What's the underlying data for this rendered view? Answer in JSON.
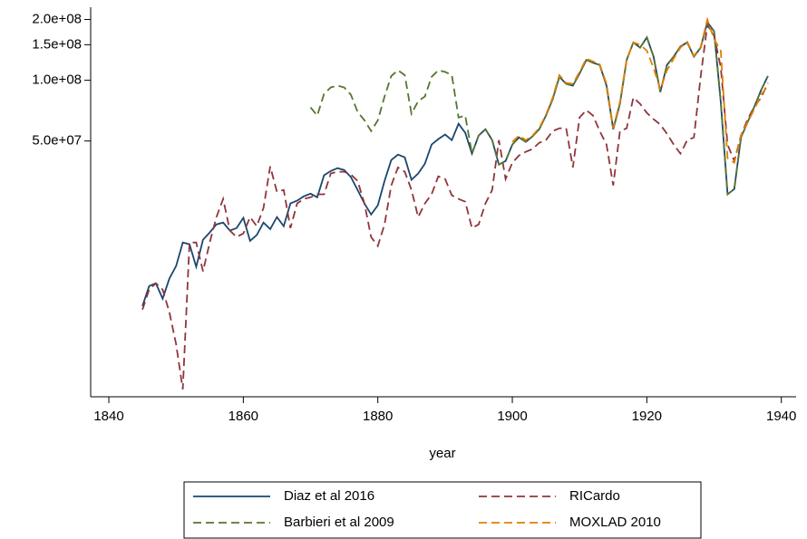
{
  "chart_data": {
    "type": "line",
    "x_label": "year",
    "x": [
      1845,
      1846,
      1847,
      1848,
      1849,
      1850,
      1851,
      1852,
      1853,
      1854,
      1855,
      1856,
      1857,
      1858,
      1859,
      1860,
      1861,
      1862,
      1863,
      1864,
      1865,
      1866,
      1867,
      1868,
      1869,
      1870,
      1871,
      1872,
      1873,
      1874,
      1875,
      1876,
      1877,
      1878,
      1879,
      1880,
      1881,
      1882,
      1883,
      1884,
      1885,
      1886,
      1887,
      1888,
      1889,
      1890,
      1891,
      1892,
      1893,
      1894,
      1895,
      1896,
      1897,
      1898,
      1899,
      1900,
      1901,
      1902,
      1903,
      1904,
      1905,
      1906,
      1907,
      1908,
      1909,
      1910,
      1911,
      1912,
      1913,
      1914,
      1915,
      1916,
      1917,
      1918,
      1919,
      1920,
      1921,
      1922,
      1923,
      1924,
      1925,
      1926,
      1927,
      1928,
      1929,
      1930,
      1931,
      1932,
      1933,
      1934,
      1935,
      1936,
      1937,
      1938
    ],
    "series": [
      {
        "name": "Diaz et al 2016",
        "color": "#1a476f",
        "dash": false,
        "values": [
          7610000,
          9550000,
          9860000,
          8270000,
          10400000,
          12000000,
          15700000,
          15400000,
          11900000,
          16200000,
          17600000,
          19300000,
          19700000,
          18000000,
          18500000,
          20800000,
          16000000,
          17100000,
          19700000,
          18300000,
          21000000,
          18900000,
          24500000,
          25300000,
          26600000,
          27400000,
          26300000,
          33800000,
          35500000,
          36700000,
          35900000,
          33100000,
          28600000,
          24500000,
          21600000,
          24000000,
          31700000,
          40200000,
          42800000,
          41500000,
          32100000,
          34500000,
          38600000,
          48000000,
          51100000,
          53800000,
          50500000,
          60900000,
          54900000,
          43300000,
          53200000,
          57200000,
          50500000,
          38200000,
          39800000,
          48000000,
          52100000,
          49500000,
          52700000,
          57200000,
          66800000,
          80500000,
          104000000,
          95900000,
          94000000,
          108000000,
          126000000,
          122000000,
          119000000,
          94000000,
          57200000,
          76400000,
          126000000,
          154000000,
          145000000,
          163000000,
          131000000,
          87400000,
          119000000,
          131000000,
          147000000,
          154000000,
          131000000,
          145000000,
          194000000,
          175000000,
          78000000,
          27200000,
          28900000,
          52100000,
          62100000,
          74100000,
          89300000,
          105000000
        ]
      },
      {
        "name": "RICardo",
        "color": "#90353b",
        "dash": true,
        "values": [
          7300000,
          9170000,
          9860000,
          9170000,
          7080000,
          4930000,
          2940000,
          15700000,
          15700000,
          11300000,
          15700000,
          21000000,
          25800000,
          18000000,
          16700000,
          17400000,
          21000000,
          18900000,
          23300000,
          37400000,
          28000000,
          28600000,
          18500000,
          24500000,
          25800000,
          26300000,
          27200000,
          27200000,
          34500000,
          35200000,
          35200000,
          34100000,
          31700000,
          24500000,
          16700000,
          15100000,
          19300000,
          30100000,
          37000000,
          35200000,
          28600000,
          21000000,
          24500000,
          27200000,
          33400000,
          32400000,
          26900000,
          25800000,
          25000000,
          18500000,
          19300000,
          24500000,
          28600000,
          50500000,
          32400000,
          39000000,
          42400000,
          44200000,
          45600000,
          49000000,
          50500000,
          56000000,
          57800000,
          57800000,
          37000000,
          65400000,
          71100000,
          66800000,
          56000000,
          48000000,
          30100000,
          56000000,
          57800000,
          82100000,
          76400000,
          68900000,
          64100000,
          60300000,
          54300000,
          48000000,
          43300000,
          50500000,
          52100000,
          104000000,
          188000000,
          166000000,
          116000000,
          48000000,
          39800000,
          53200000,
          64100000,
          74100000,
          82100000,
          96900000
        ]
      },
      {
        "name": "Barbieri et al 2009",
        "color": "#55752f",
        "dash": true,
        "values": [
          null,
          null,
          null,
          null,
          null,
          null,
          null,
          null,
          null,
          null,
          null,
          null,
          null,
          null,
          null,
          null,
          null,
          null,
          null,
          null,
          null,
          null,
          null,
          null,
          null,
          73300000,
          66800000,
          85600000,
          92100000,
          94000000,
          92100000,
          84700000,
          69600000,
          63400000,
          56000000,
          63400000,
          83000000,
          105000000,
          112000000,
          106000000,
          68200000,
          78800000,
          83000000,
          104000000,
          112000000,
          110000000,
          106000000,
          65400000,
          66800000,
          43300000,
          53200000,
          57200000,
          50500000,
          38200000,
          39800000,
          48000000,
          52100000,
          49500000,
          52700000,
          57200000,
          66800000,
          80500000,
          104000000,
          95900000,
          94000000,
          108000000,
          126000000,
          122000000,
          119000000,
          94000000,
          57200000,
          76400000,
          126000000,
          154000000,
          145000000,
          163000000,
          131000000,
          87400000,
          119000000,
          131000000,
          147000000,
          154000000,
          131000000,
          145000000,
          194000000,
          175000000,
          78000000,
          27200000,
          28900000,
          52100000,
          62100000,
          74100000,
          89300000,
          105000000
        ]
      },
      {
        "name": "MOXLAD 2010",
        "color": "#e37e00",
        "dash": true,
        "values": [
          null,
          null,
          null,
          null,
          null,
          null,
          null,
          null,
          null,
          null,
          null,
          null,
          null,
          null,
          null,
          null,
          null,
          null,
          null,
          null,
          null,
          null,
          null,
          null,
          null,
          null,
          null,
          null,
          null,
          null,
          null,
          null,
          null,
          null,
          null,
          null,
          null,
          null,
          null,
          null,
          null,
          null,
          null,
          null,
          null,
          null,
          null,
          null,
          null,
          null,
          null,
          null,
          null,
          null,
          null,
          49500000,
          53200000,
          50500000,
          53200000,
          58000000,
          67500000,
          82000000,
          106000000,
          97000000,
          96000000,
          110000000,
          128000000,
          124000000,
          120000000,
          96000000,
          58000000,
          78000000,
          127000000,
          154000000,
          150000000,
          140000000,
          115000000,
          90000000,
          112000000,
          128000000,
          145000000,
          155000000,
          132000000,
          146000000,
          200000000,
          160000000,
          140000000,
          41100000,
          39000000,
          53200000,
          62100000,
          72000000,
          84700000,
          94000000
        ]
      }
    ],
    "xlim": [
      1837.3,
      1942.2
    ],
    "xticks": [
      1840,
      1860,
      1880,
      1900,
      1920,
      1940
    ],
    "ylim": [
      2700000,
      230000000
    ],
    "yticks": [
      {
        "value": 50000000,
        "label": "5.0e+07"
      },
      {
        "value": 100000000,
        "label": "1.0e+08"
      },
      {
        "value": 150000000,
        "label": "1.5e+08"
      },
      {
        "value": 200000000,
        "label": "2.0e+08"
      }
    ],
    "log_y": true,
    "grid": false,
    "legend": "bottom"
  }
}
